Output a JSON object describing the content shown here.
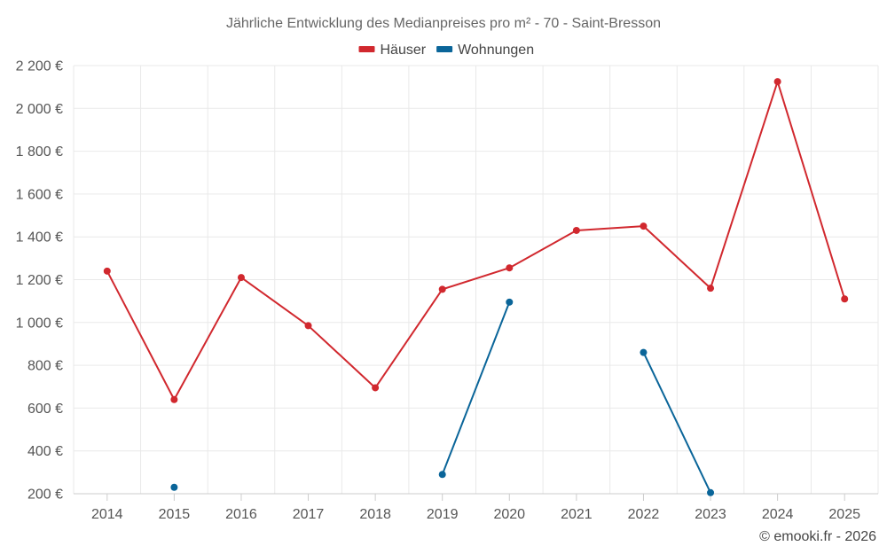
{
  "chart_data": {
    "type": "line",
    "title": "Jährliche Entwicklung des Medianpreises pro m² - 70 - Saint-Bresson",
    "categories": [
      "2014",
      "2015",
      "2016",
      "2017",
      "2018",
      "2019",
      "2020",
      "2021",
      "2022",
      "2023",
      "2024",
      "2025"
    ],
    "series": [
      {
        "name": "Häuser",
        "color": "#d1282e",
        "values": [
          1240,
          640,
          1210,
          985,
          695,
          1155,
          1255,
          1430,
          1450,
          1160,
          2125,
          1110
        ]
      },
      {
        "name": "Wohnungen",
        "color": "#0a6599",
        "values": [
          null,
          230,
          null,
          null,
          null,
          290,
          1095,
          null,
          860,
          205,
          null,
          null
        ]
      }
    ],
    "y_ticks": [
      "200 €",
      "400 €",
      "600 €",
      "800 €",
      "1 000 €",
      "1 200 €",
      "1 400 €",
      "1 600 €",
      "1 800 €",
      "2 000 €",
      "2 200 €"
    ],
    "ylim": [
      200,
      2200
    ],
    "xlabel": "",
    "ylabel": "",
    "grid": true,
    "legend_position": "top-center"
  },
  "credits": "© emooki.fr - 2026"
}
